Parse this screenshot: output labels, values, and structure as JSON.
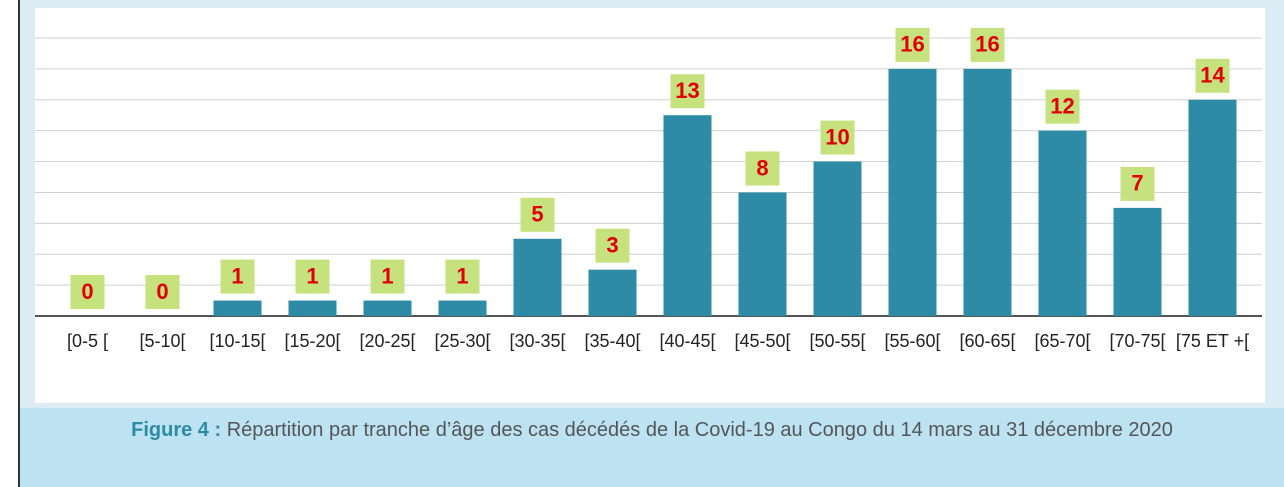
{
  "chart_data": {
    "type": "bar",
    "figure_label": "Figure 4 :",
    "title": "Répartition par tranche d’âge des cas décédés de la Covid-19 au Congo du 14 mars au 31 décembre 2020",
    "categories": [
      "[0-5 [",
      "[5-10[",
      "[10-15[",
      "[15-20[",
      "[20-25[",
      "[25-30[",
      "[30-35[",
      "[35-40[",
      "[40-45[",
      "[45-50[",
      "[50-55[",
      "[55-60[",
      "[60-65[",
      "[65-70[",
      "[70-75[",
      "[75 ET +["
    ],
    "values": [
      0,
      0,
      1,
      1,
      1,
      1,
      5,
      3,
      13,
      8,
      10,
      16,
      16,
      12,
      7,
      14
    ],
    "color": "#2e8ba6",
    "label_color": "#e00000",
    "label_background": "#c6e27f",
    "ylim": [
      0,
      18
    ],
    "yticks": [
      0,
      2,
      4,
      6,
      8,
      10,
      12,
      14,
      16,
      18
    ],
    "grid": true
  }
}
